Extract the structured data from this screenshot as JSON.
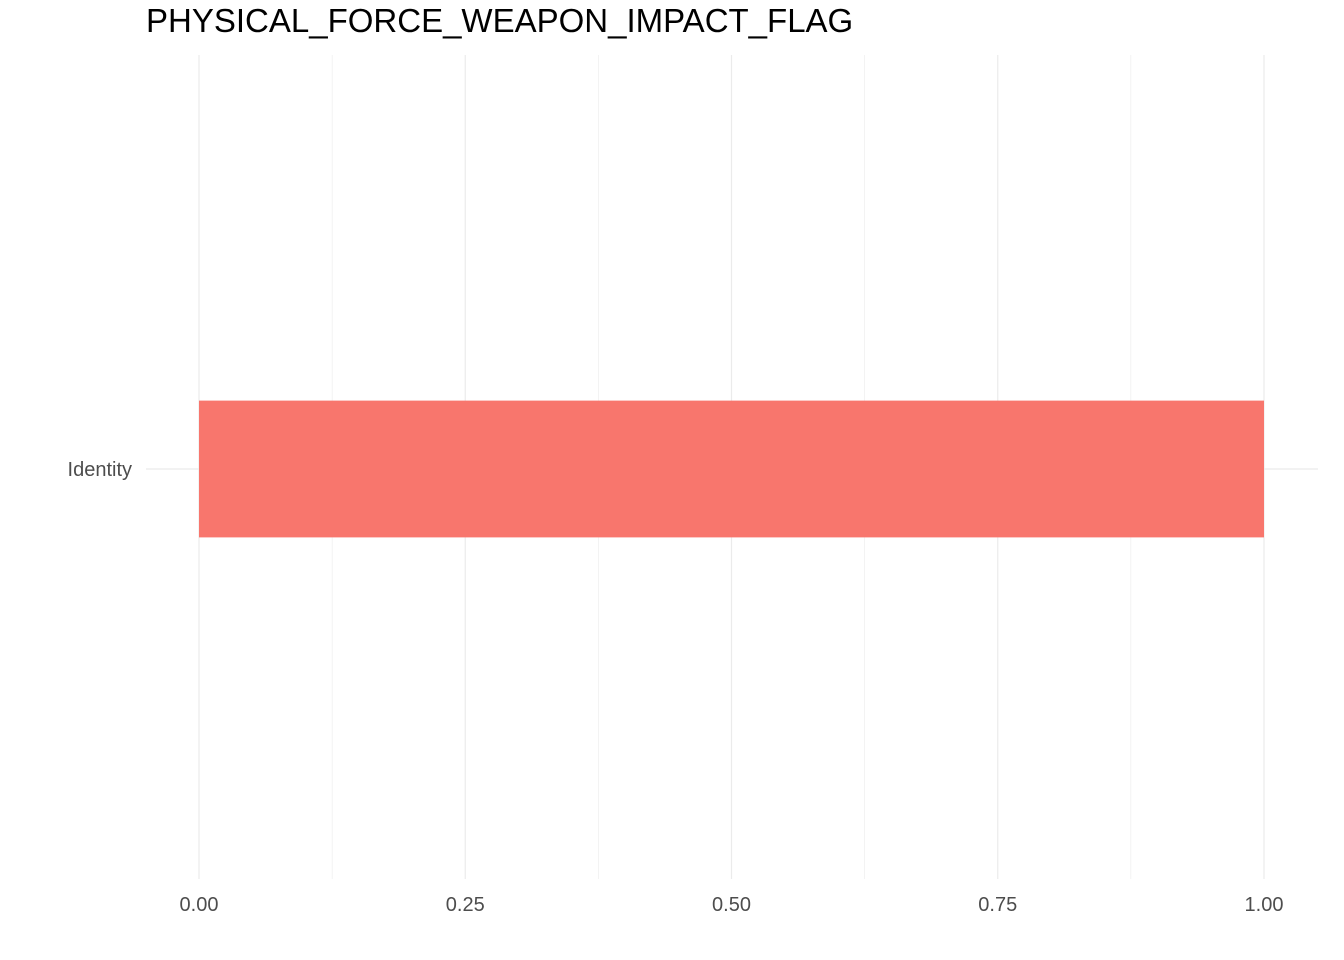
{
  "chart_data": {
    "type": "bar",
    "orientation": "horizontal",
    "title": "PHYSICAL_FORCE_WEAPON_IMPACT_FLAG",
    "xlabel": "",
    "ylabel": "",
    "categories": [
      "Identity"
    ],
    "values": [
      1.0
    ],
    "xlim": [
      0,
      1
    ],
    "x_ticks": [
      "0.00",
      "0.25",
      "0.50",
      "0.75",
      "1.00"
    ],
    "grid": true,
    "legend": "none",
    "bar_color": "#F8766D",
    "grid_color": "#EBEBEB",
    "tick_label_color": "#4D4D4D"
  }
}
